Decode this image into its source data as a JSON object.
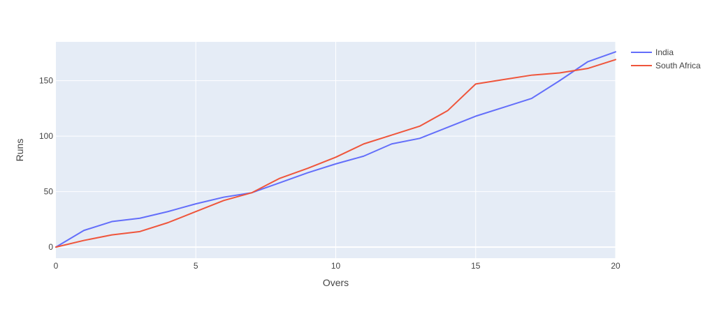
{
  "chart_data": {
    "type": "line",
    "title": "",
    "xlabel": "Overs",
    "ylabel": "Runs",
    "xlim": [
      0,
      20
    ],
    "ylim": [
      -10,
      185
    ],
    "xticks": [
      0,
      5,
      10,
      15,
      20
    ],
    "yticks": [
      0,
      50,
      100,
      150
    ],
    "grid": true,
    "legend_position": "top-right",
    "plot_background": "#e5ecf6",
    "series": [
      {
        "name": "India",
        "color": "#636efa",
        "x": [
          0,
          1,
          2,
          3,
          4,
          5,
          6,
          7,
          8,
          9,
          10,
          11,
          12,
          13,
          14,
          15,
          16,
          17,
          18,
          19,
          20
        ],
        "y": [
          0,
          15,
          23,
          26,
          32,
          39,
          45,
          49,
          58,
          67,
          75,
          82,
          93,
          98,
          108,
          118,
          126,
          134,
          150,
          167,
          176
        ]
      },
      {
        "name": "South Africa",
        "color": "#ef553b",
        "x": [
          0,
          1,
          2,
          3,
          4,
          5,
          6,
          7,
          8,
          9,
          10,
          11,
          12,
          13,
          14,
          15,
          16,
          17,
          18,
          19,
          20
        ],
        "y": [
          0,
          6,
          11,
          14,
          22,
          32,
          42,
          49,
          62,
          71,
          81,
          93,
          101,
          109,
          123,
          147,
          151,
          155,
          157,
          161,
          169
        ]
      }
    ]
  }
}
